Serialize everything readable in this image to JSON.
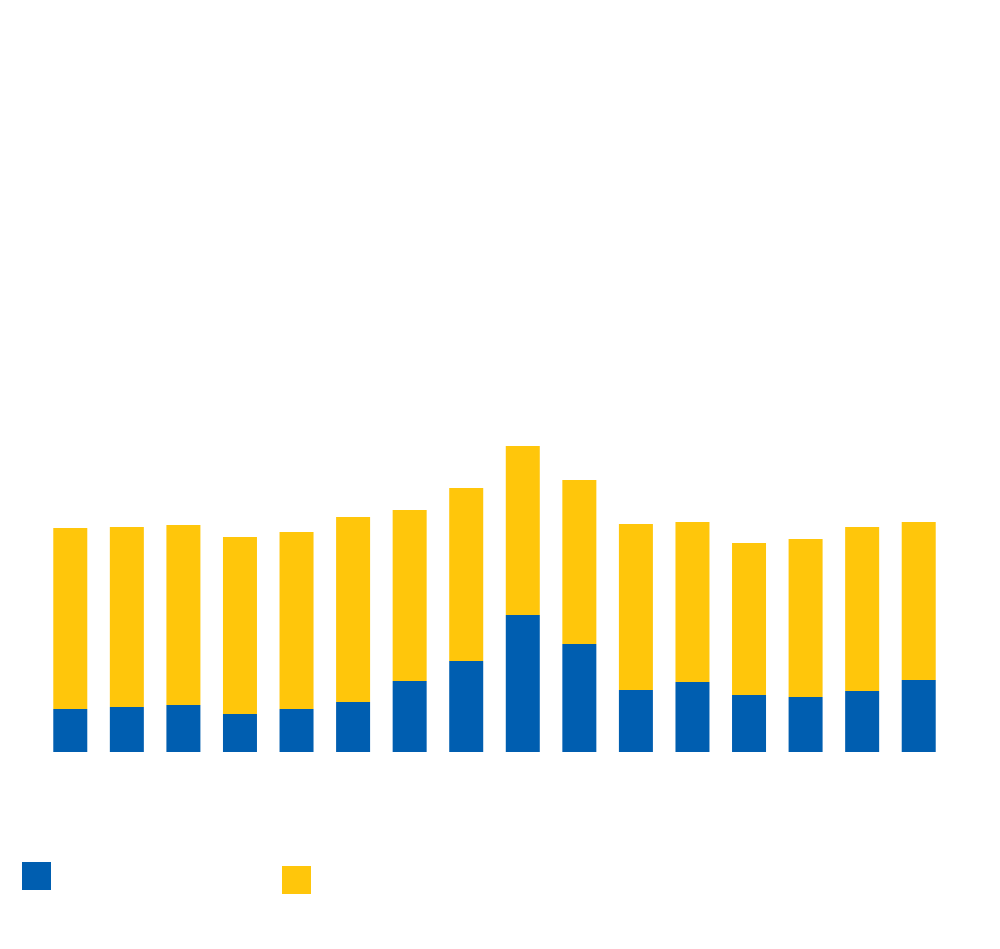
{
  "chart_data": {
    "type": "bar",
    "stacked": true,
    "categories": [
      null,
      null,
      null,
      null,
      null,
      null,
      null,
      null,
      null,
      null,
      null,
      null,
      null,
      null,
      null,
      null
    ],
    "series": [
      {
        "color": "#005eb0",
        "values": [
          43,
          45,
          47,
          38,
          43,
          50,
          71,
          91,
          137,
          108,
          62,
          70,
          57,
          55,
          61,
          72
        ]
      },
      {
        "color": "#ffc60b",
        "values": [
          181,
          180,
          180,
          177,
          177,
          185,
          171,
          173,
          169,
          164,
          166,
          160,
          152,
          158,
          164,
          158
        ]
      }
    ],
    "ylim": [
      0,
      752
    ]
  }
}
